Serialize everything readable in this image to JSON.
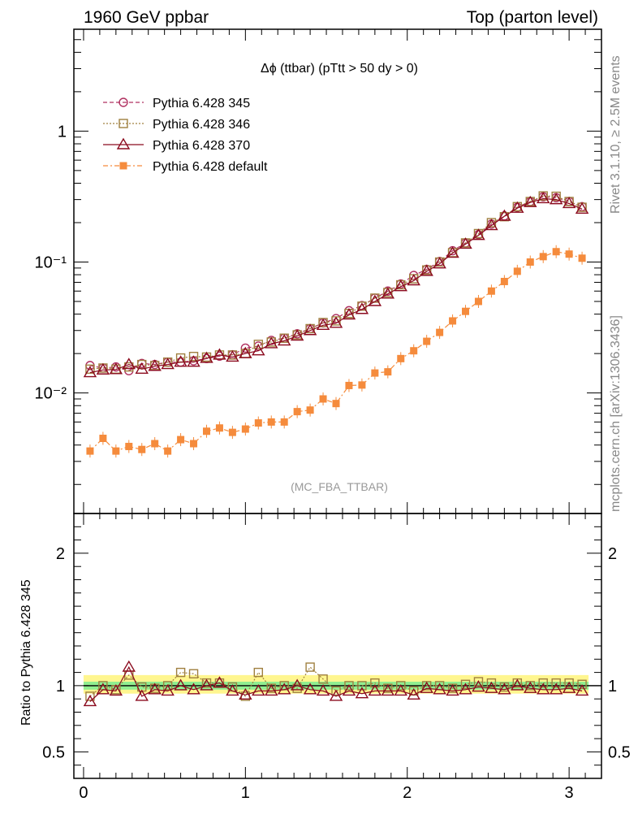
{
  "header": {
    "left": "1960 GeV ppbar",
    "right": "Top (parton level)"
  },
  "side_labels": {
    "rivet": "Rivet 3.1.10, ≥ 2.5M events",
    "mcplots": "mcplots.cern.ch [arXiv:1306.3436]"
  },
  "watermark": "(MC_FBA_TTBAR)",
  "chart_data": {
    "type": "line",
    "title": "Δϕ (ttbar) (pTtt > 50 dy > 0)",
    "xlabel": "",
    "ylabel": "",
    "ratio_ylabel": "Ratio to Pythia 6.428 345",
    "y_scale": "log",
    "xlim": [
      -0.06,
      3.2
    ],
    "ylim": [
      0.0012,
      6.0
    ],
    "ratio_ylim": [
      0.3,
      2.3
    ],
    "x_ticks": [
      "0",
      "1",
      "2",
      "3"
    ],
    "y_ticks": [
      "10⁻²",
      "10⁻¹",
      "1"
    ],
    "ratio_ticks": [
      "0.5",
      "1",
      "2"
    ],
    "legend_position": "top-left",
    "x": [
      0.04,
      0.12,
      0.2,
      0.28,
      0.36,
      0.44,
      0.52,
      0.6,
      0.68,
      0.76,
      0.84,
      0.92,
      1.0,
      1.08,
      1.16,
      1.24,
      1.32,
      1.4,
      1.48,
      1.56,
      1.64,
      1.72,
      1.8,
      1.88,
      1.96,
      2.04,
      2.12,
      2.2,
      2.28,
      2.36,
      2.44,
      2.52,
      2.6,
      2.68,
      2.76,
      2.84,
      2.92,
      3.0,
      3.08
    ],
    "series": [
      {
        "name": "Pythia 6.428 345",
        "color": "#b03060",
        "marker": "circle-open",
        "linestyle": "dashed",
        "values": [
          0.0162,
          0.0155,
          0.0158,
          0.0148,
          0.0168,
          0.0165,
          0.0172,
          0.0172,
          0.0176,
          0.0183,
          0.0191,
          0.0196,
          0.022,
          0.0228,
          0.0252,
          0.0262,
          0.0283,
          0.031,
          0.0343,
          0.037,
          0.0425,
          0.0465,
          0.053,
          0.06,
          0.068,
          0.079,
          0.088,
          0.101,
          0.122,
          0.14,
          0.162,
          0.195,
          0.225,
          0.262,
          0.29,
          0.315,
          0.31,
          0.29,
          0.265
        ]
      },
      {
        "name": "Pythia 6.428 346",
        "color": "#a08040",
        "marker": "square-open",
        "linestyle": "dotted",
        "values": [
          0.0152,
          0.0155,
          0.0152,
          0.0158,
          0.0165,
          0.0162,
          0.0172,
          0.0185,
          0.019,
          0.0188,
          0.0195,
          0.0195,
          0.02,
          0.0235,
          0.0245,
          0.0262,
          0.0278,
          0.031,
          0.0345,
          0.0355,
          0.0405,
          0.046,
          0.053,
          0.0585,
          0.067,
          0.0745,
          0.087,
          0.1,
          0.118,
          0.14,
          0.165,
          0.2,
          0.222,
          0.265,
          0.29,
          0.32,
          0.318,
          0.29,
          0.262
        ]
      },
      {
        "name": "Pythia 6.428 370",
        "color": "#8b0a1e",
        "marker": "triangle-open",
        "linestyle": "solid",
        "values": [
          0.0143,
          0.015,
          0.0151,
          0.0165,
          0.0152,
          0.016,
          0.0165,
          0.0172,
          0.0172,
          0.0184,
          0.0195,
          0.0188,
          0.02,
          0.021,
          0.0238,
          0.025,
          0.0272,
          0.03,
          0.0329,
          0.0341,
          0.0395,
          0.0435,
          0.05,
          0.057,
          0.065,
          0.072,
          0.085,
          0.097,
          0.117,
          0.137,
          0.16,
          0.19,
          0.224,
          0.258,
          0.285,
          0.305,
          0.3,
          0.28,
          0.254
        ]
      },
      {
        "name": "Pythia 6.428 default",
        "color": "#f58b3c",
        "marker": "square-filled",
        "linestyle": "dashdot",
        "values": [
          0.0036,
          0.0045,
          0.0036,
          0.0039,
          0.0037,
          0.0041,
          0.0036,
          0.0044,
          0.0041,
          0.0051,
          0.0054,
          0.005,
          0.0053,
          0.0059,
          0.006,
          0.006,
          0.0072,
          0.0074,
          0.009,
          0.0083,
          0.0114,
          0.0115,
          0.0142,
          0.0145,
          0.0183,
          0.021,
          0.0248,
          0.029,
          0.0355,
          0.042,
          0.05,
          0.06,
          0.071,
          0.085,
          0.1,
          0.11,
          0.12,
          0.115,
          0.107
        ]
      }
    ],
    "ratio_series": [
      {
        "name": "Pythia 6.428 346",
        "values": [
          0.92,
          1.0,
          0.97,
          1.08,
          0.99,
          0.98,
          1.0,
          1.1,
          1.09,
          1.02,
          1.02,
          0.99,
          0.92,
          1.1,
          0.98,
          1.0,
          0.98,
          1.14,
          1.05,
          0.96,
          1.0,
          1.0,
          1.02,
          0.98,
          1.0,
          0.96,
          1.0,
          1.0,
          0.98,
          1.01,
          1.03,
          1.02,
          0.99,
          1.02,
          1.0,
          1.02,
          1.02,
          1.02,
          1.01
        ]
      },
      {
        "name": "Pythia 6.428 370",
        "values": [
          0.88,
          0.97,
          0.96,
          1.14,
          0.92,
          0.97,
          0.96,
          1.0,
          0.97,
          1.0,
          1.02,
          0.96,
          0.93,
          0.96,
          0.96,
          0.97,
          1.0,
          0.97,
          0.96,
          0.92,
          0.96,
          0.94,
          0.96,
          0.96,
          0.96,
          0.93,
          0.98,
          0.97,
          0.96,
          0.97,
          0.99,
          0.98,
          0.97,
          1.0,
          0.98,
          0.97,
          0.97,
          0.98,
          0.96
        ]
      }
    ],
    "reference_band": {
      "inner": 0.03,
      "outer": 0.06
    }
  }
}
